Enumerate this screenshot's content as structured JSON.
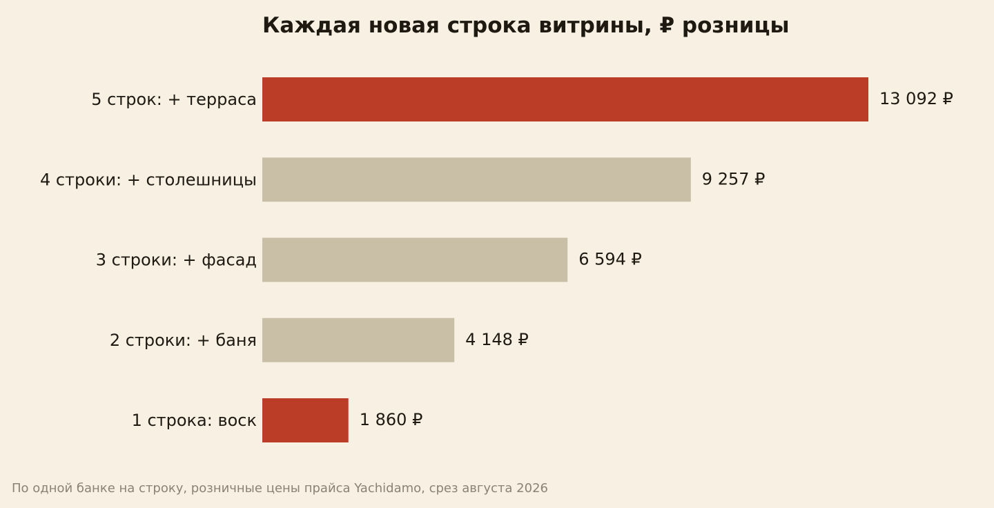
{
  "chart_data": {
    "type": "bar",
    "orientation": "horizontal",
    "title": "Каждая новая строка витрины, ₽ розницы",
    "categories": [
      "5 строк: + терраса",
      "4 строки: + столешницы",
      "3 строки: + фасад",
      "2 строки: + баня",
      "1 строка: воск"
    ],
    "values": [
      13092,
      9257,
      6594,
      4148,
      1860
    ],
    "value_labels": [
      "13 092 ₽",
      "9 257 ₽",
      "6 594 ₽",
      "4 148 ₽",
      "1 860 ₽"
    ],
    "highlighted": [
      true,
      false,
      false,
      false,
      true
    ],
    "xlim": [
      0,
      13092
    ],
    "grid": false,
    "legend": "none",
    "xlabel": "",
    "ylabel": ""
  },
  "colors": {
    "background": "#f7f0e3",
    "highlight": "#bc3d27",
    "muted": "#c9bfa7",
    "text": "#1e1a12",
    "footnote": "#8a8275"
  },
  "footnote": "По одной банке на строку, розничные цены прайса Yachidamo, срез августа 2026"
}
